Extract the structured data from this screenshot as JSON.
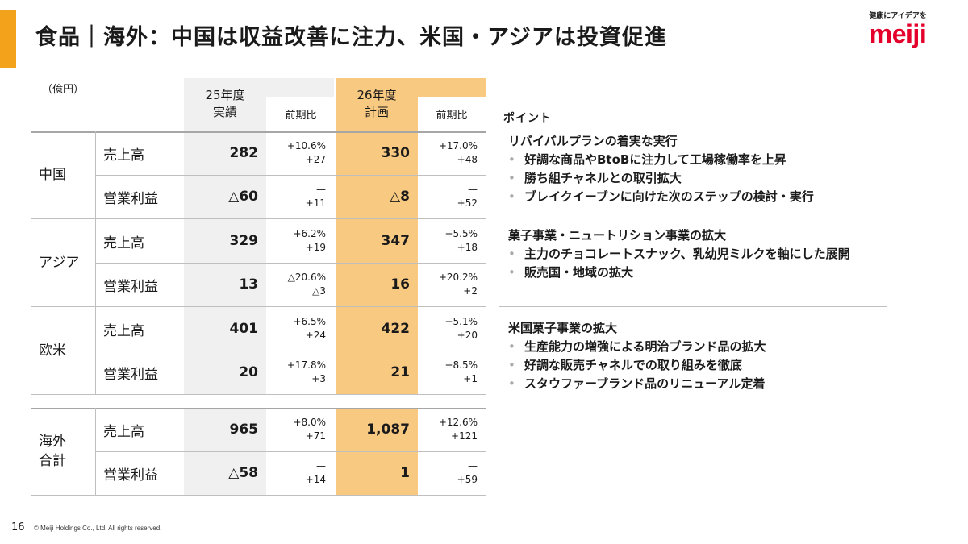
{
  "title": "食品｜海外：中国は収益改善に注力、米国・アジアは投資促進",
  "logo": {
    "tagline": "健康にアイデアを",
    "wordmark": "meiji",
    "brand_color": "#e4002b"
  },
  "accent_color": "#f2a31b",
  "plan_column_color": "#f8c980",
  "actual_column_color": "#f0f0f0",
  "unit": "（億円）",
  "table": {
    "headers": {
      "actual": [
        "25年度",
        "実績"
      ],
      "actual_yoy": "前期比",
      "plan": [
        "26年度",
        "計画"
      ],
      "plan_yoy": "前期比"
    },
    "regions": [
      {
        "name": "中国",
        "rows": [
          {
            "metric": "売上高",
            "actual": "282",
            "actual_pct": "+10.6%",
            "actual_diff": "+27",
            "plan": "330",
            "plan_pct": "+17.0%",
            "plan_diff": "+48"
          },
          {
            "metric": "営業利益",
            "actual": "△60",
            "actual_pct": "—",
            "actual_diff": "+11",
            "plan": "△8",
            "plan_pct": "—",
            "plan_diff": "+52"
          }
        ]
      },
      {
        "name": "アジア",
        "rows": [
          {
            "metric": "売上高",
            "actual": "329",
            "actual_pct": "+6.2%",
            "actual_diff": "+19",
            "plan": "347",
            "plan_pct": "+5.5%",
            "plan_diff": "+18"
          },
          {
            "metric": "営業利益",
            "actual": "13",
            "actual_pct": "△20.6%",
            "actual_diff": "△3",
            "plan": "16",
            "plan_pct": "+20.2%",
            "plan_diff": "+2"
          }
        ]
      },
      {
        "name": "欧米",
        "rows": [
          {
            "metric": "売上高",
            "actual": "401",
            "actual_pct": "+6.5%",
            "actual_diff": "+24",
            "plan": "422",
            "plan_pct": "+5.1%",
            "plan_diff": "+20"
          },
          {
            "metric": "営業利益",
            "actual": "20",
            "actual_pct": "+17.8%",
            "actual_diff": "+3",
            "plan": "21",
            "plan_pct": "+8.5%",
            "plan_diff": "+1"
          }
        ]
      },
      {
        "name_lines": [
          "海外",
          "合計"
        ],
        "rows": [
          {
            "metric": "売上高",
            "actual": "965",
            "actual_pct": "+8.0%",
            "actual_diff": "+71",
            "plan": "1,087",
            "plan_pct": "+12.6%",
            "plan_diff": "+121"
          },
          {
            "metric": "営業利益",
            "actual": "△58",
            "actual_pct": "—",
            "actual_diff": "+14",
            "plan": "1",
            "plan_pct": "—",
            "plan_diff": "+59"
          }
        ]
      }
    ]
  },
  "points": {
    "heading": "ポイント",
    "sections": [
      {
        "title": "リバイバルプランの着実な実行",
        "bullets": [
          "好調な商品やBtoBに注力して工場稼働率を上昇",
          "勝ち組チャネルとの取引拡大",
          "ブレイクイーブンに向けた次のステップの検討・実行"
        ]
      },
      {
        "title": "菓子事業・ニュートリション事業の拡大",
        "bullets": [
          "主力のチョコレートスナック、乳幼児ミルクを軸にした展開",
          "販売国・地域の拡大"
        ]
      },
      {
        "title": "米国菓子事業の拡大",
        "bullets": [
          "生産能力の増強による明治ブランド品の拡大",
          "好調な販売チャネルでの取り組みを徹底",
          "スタウファーブランド品のリニューアル定着"
        ]
      }
    ]
  },
  "footer": {
    "page": "16",
    "copyright": "© Meiji Holdings Co., Ltd. All rights reserved."
  }
}
